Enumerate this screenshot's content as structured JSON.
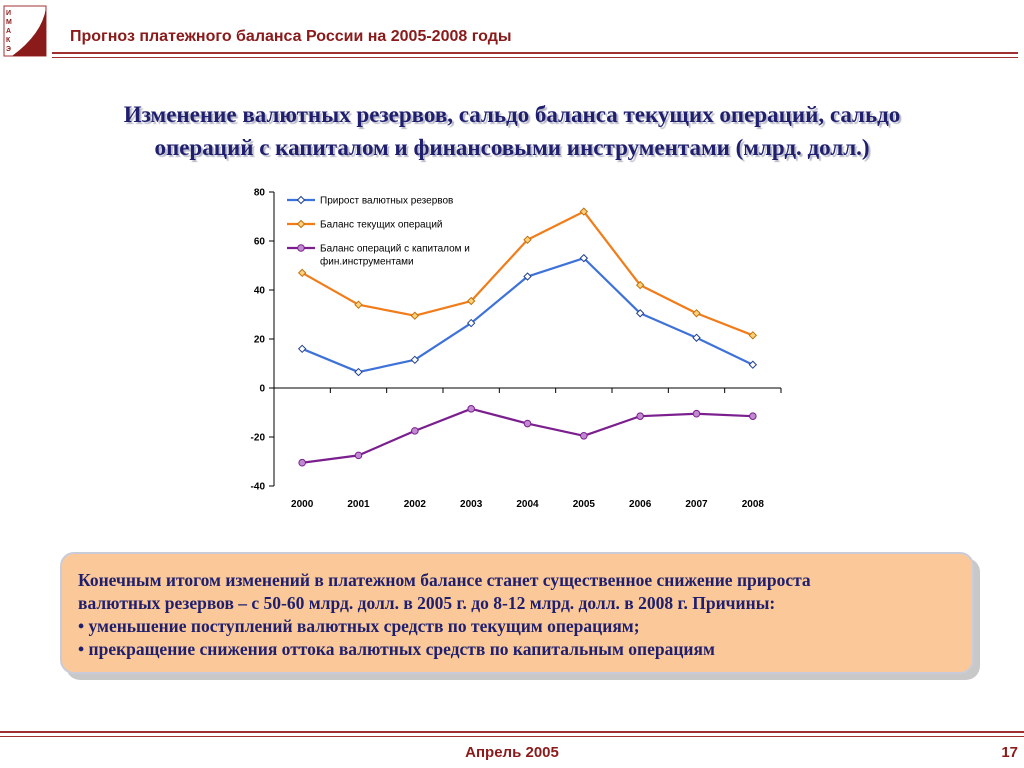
{
  "header": {
    "title": "Прогноз платежного баланса России на 2005-2008 годы",
    "logo_letters": [
      "И",
      "М",
      "А",
      "К",
      "Э"
    ]
  },
  "slide_title": {
    "line1": "Изменение валютных резервов, сальдо баланса текущих операций, сальдо",
    "line2": "операций с капиталом и финансовыми инструментами (млрд. долл.)"
  },
  "chart_data": {
    "type": "line",
    "categories": [
      "2000",
      "2001",
      "2002",
      "2003",
      "2004",
      "2005",
      "2006",
      "2007",
      "2008"
    ],
    "ylim": [
      -40,
      80
    ],
    "yticks": [
      80,
      60,
      40,
      20,
      0,
      -20,
      -40
    ],
    "grid": false,
    "legend_position": "top-left",
    "series": [
      {
        "name": "Прирост валютных резервов",
        "color": "#3f72d8",
        "values": [
          16,
          6.5,
          11.5,
          26.5,
          45.5,
          53,
          30.5,
          20.5,
          9.5
        ]
      },
      {
        "name": "Баланс текущих операций",
        "color": "#f07c1a",
        "values": [
          47,
          34,
          29.5,
          35.5,
          60.5,
          72,
          42,
          30.5,
          21.5
        ]
      },
      {
        "name": "Баланс операций с капиталом и фин.инструментами",
        "color": "#7b1f8f",
        "legend_lines": [
          "Баланс операций с капиталом и",
          "фин.инструментами"
        ],
        "values": [
          -30.5,
          -27.5,
          -17.5,
          -8.5,
          -14.5,
          -19.5,
          -11.5,
          -10.5,
          -11.5
        ]
      }
    ]
  },
  "note": {
    "line1": "Конечным итогом изменений в платежном балансе станет существенное снижение прироста",
    "line2": "валютных резервов – с 50-60 млрд. долл. в 2005 г. до 8-12 млрд. долл. в 2008 г. Причины:",
    "line3": "• уменьшение поступлений валютных средств по текущим операциям;",
    "line4": "• прекращение снижения оттока валютных средств по капитальным операциям"
  },
  "footer": {
    "date": "Апрель 2005",
    "page": "17"
  },
  "colors": {
    "header_text": "#8b1a1a",
    "title_text": "#1f1f6e",
    "note_fill": "#fbc999"
  }
}
